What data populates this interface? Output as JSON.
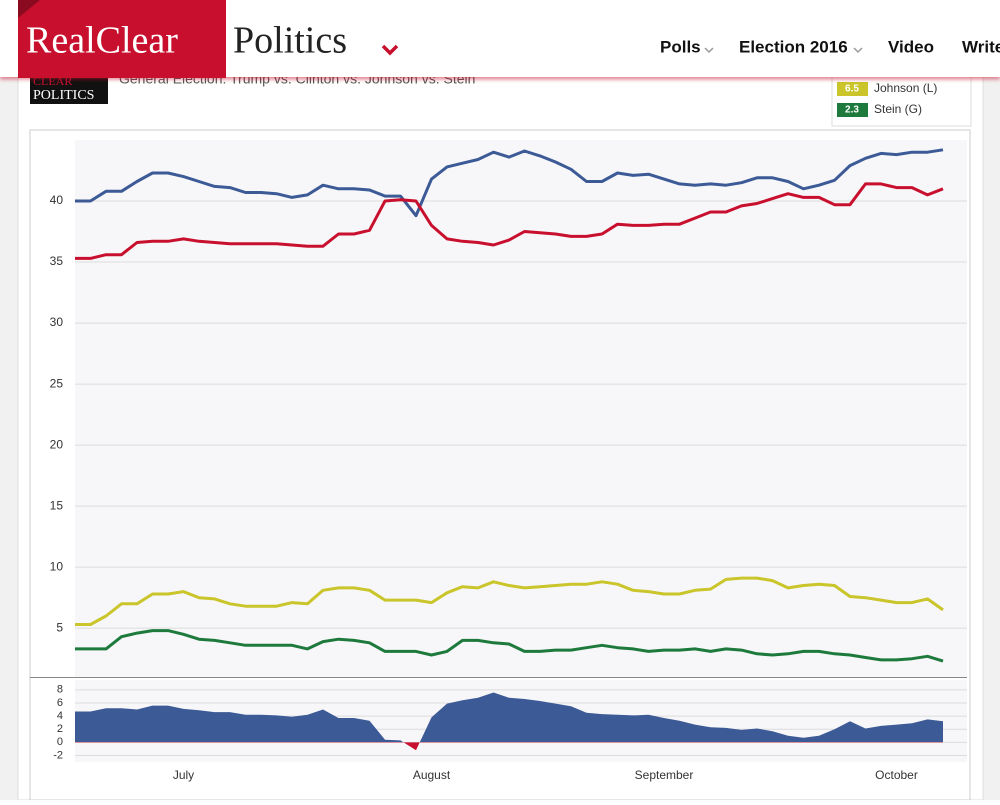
{
  "header": {
    "logo": {
      "first": "RealClear",
      "second": "Politics"
    },
    "nav": [
      "Polls",
      "Election 2016",
      "Video",
      "Write"
    ]
  },
  "badge": [
    "CLEAR",
    "POLITICS"
  ],
  "chart_data": [
    {
      "type": "line",
      "title": "General Election: Trump vs. Clinton vs. Johnson vs. Stein",
      "categories": [
        null,
        null,
        null,
        null,
        null,
        null,
        null,
        "July",
        null,
        null,
        null,
        null,
        null,
        null,
        null,
        null,
        null,
        null,
        null,
        null,
        null,
        null,
        null,
        "August",
        null,
        null,
        null,
        null,
        null,
        null,
        null,
        null,
        null,
        null,
        null,
        null,
        null,
        null,
        "September",
        null,
        null,
        null,
        null,
        null,
        null,
        null,
        null,
        null,
        null,
        null,
        null,
        null,
        null,
        "October",
        null,
        null,
        null
      ],
      "ylim": [
        1,
        45
      ],
      "yticks": [
        5,
        10,
        15,
        20,
        25,
        30,
        35,
        40
      ],
      "grid": true,
      "series": [
        {
          "color": "#3c5a96",
          "values": [
            40.0,
            40.0,
            40.8,
            40.8,
            41.6,
            42.3,
            42.3,
            42.0,
            41.6,
            41.2,
            41.1,
            40.7,
            40.7,
            40.6,
            40.3,
            40.5,
            41.3,
            41.0,
            41.0,
            40.9,
            40.4,
            40.4,
            38.8,
            41.8,
            42.8,
            43.1,
            43.4,
            44.0,
            43.6,
            44.1,
            43.7,
            43.2,
            42.6,
            41.6,
            41.6,
            42.3,
            42.1,
            42.2,
            41.8,
            41.4,
            41.3,
            41.4,
            41.3,
            41.5,
            41.9,
            41.9,
            41.6,
            41.0,
            41.3,
            41.7,
            42.9,
            43.5,
            43.9,
            43.8,
            44.0,
            44.0,
            44.2
          ]
        },
        {
          "color": "#c8102e",
          "values": [
            35.3,
            35.3,
            35.6,
            35.6,
            36.6,
            36.7,
            36.7,
            36.9,
            36.7,
            36.6,
            36.5,
            36.5,
            36.5,
            36.5,
            36.4,
            36.3,
            36.3,
            37.3,
            37.3,
            37.6,
            40.0,
            40.1,
            40.0,
            38.0,
            36.9,
            36.7,
            36.6,
            36.4,
            36.8,
            37.5,
            37.4,
            37.3,
            37.1,
            37.1,
            37.3,
            38.1,
            38.0,
            38.0,
            38.1,
            38.1,
            38.6,
            39.1,
            39.1,
            39.6,
            39.8,
            40.2,
            40.6,
            40.3,
            40.3,
            39.7,
            39.7,
            41.4,
            41.4,
            41.1,
            41.1,
            40.5,
            41.0
          ]
        },
        {
          "name": "Johnson (L)",
          "color": "#c9c52a",
          "values": [
            5.3,
            5.3,
            6.0,
            7.0,
            7.0,
            7.8,
            7.8,
            8.0,
            7.5,
            7.4,
            7.0,
            6.8,
            6.8,
            6.8,
            7.1,
            7.0,
            8.1,
            8.3,
            8.3,
            8.1,
            7.3,
            7.3,
            7.3,
            7.1,
            7.9,
            8.4,
            8.3,
            8.8,
            8.5,
            8.3,
            8.4,
            8.5,
            8.6,
            8.6,
            8.8,
            8.6,
            8.1,
            8.0,
            7.8,
            7.8,
            8.1,
            8.2,
            9.0,
            9.1,
            9.1,
            8.9,
            8.3,
            8.5,
            8.6,
            8.5,
            7.6,
            7.5,
            7.3,
            7.1,
            7.1,
            7.4,
            6.5
          ]
        },
        {
          "name": "Stein (G)",
          "color": "#1e7a3c",
          "values": [
            3.3,
            3.3,
            3.3,
            4.3,
            4.6,
            4.8,
            4.8,
            4.5,
            4.1,
            4.0,
            3.8,
            3.6,
            3.6,
            3.6,
            3.6,
            3.3,
            3.9,
            4.1,
            4.0,
            3.8,
            3.1,
            3.1,
            3.1,
            2.8,
            3.1,
            4.0,
            4.0,
            3.8,
            3.7,
            3.1,
            3.1,
            3.2,
            3.2,
            3.4,
            3.6,
            3.4,
            3.3,
            3.1,
            3.2,
            3.2,
            3.3,
            3.1,
            3.3,
            3.2,
            2.9,
            2.8,
            2.9,
            3.1,
            3.1,
            2.9,
            2.8,
            2.6,
            2.4,
            2.4,
            2.5,
            2.7,
            2.3
          ]
        }
      ]
    },
    {
      "type": "area",
      "color": "#3c5a96",
      "negative_color": "#c8102e",
      "ylim": [
        -3,
        9.5
      ],
      "yticks": [
        -2,
        0,
        2,
        4,
        6,
        8
      ],
      "grid": true,
      "values": [
        4.7,
        4.7,
        5.2,
        5.2,
        5.0,
        5.6,
        5.6,
        5.1,
        4.9,
        4.6,
        4.6,
        4.2,
        4.2,
        4.1,
        3.9,
        4.2,
        5.0,
        3.7,
        3.7,
        3.3,
        0.4,
        0.3,
        -1.2,
        3.8,
        5.9,
        6.4,
        6.8,
        7.6,
        6.8,
        6.6,
        6.3,
        5.9,
        5.5,
        4.5,
        4.3,
        4.2,
        4.1,
        4.2,
        3.7,
        3.3,
        2.7,
        2.3,
        2.2,
        1.9,
        2.1,
        1.7,
        1.0,
        0.7,
        1.0,
        2.0,
        3.2,
        2.1,
        2.5,
        2.7,
        2.9,
        3.5,
        3.2
      ]
    }
  ]
}
